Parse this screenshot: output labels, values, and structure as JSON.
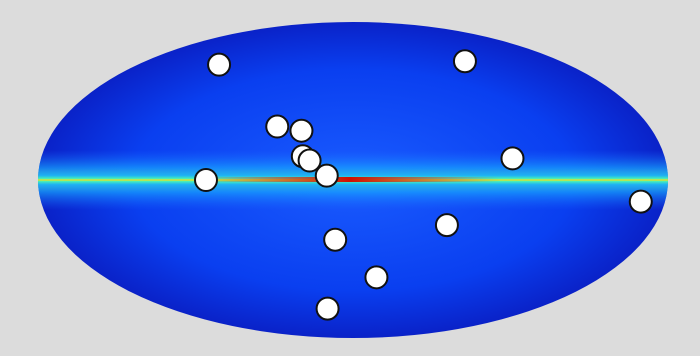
{
  "map": {
    "projection": "mollweide",
    "lon": [
      112,
      263,
      46,
      31,
      29,
      25,
      15,
      84,
      268,
      194,
      11,
      304,
      343,
      25
    ],
    "lat": [
      57,
      59,
      25,
      23,
      11,
      9,
      2,
      0,
      10,
      -10,
      -28,
      -21,
      -47,
      -65
    ]
  }
}
